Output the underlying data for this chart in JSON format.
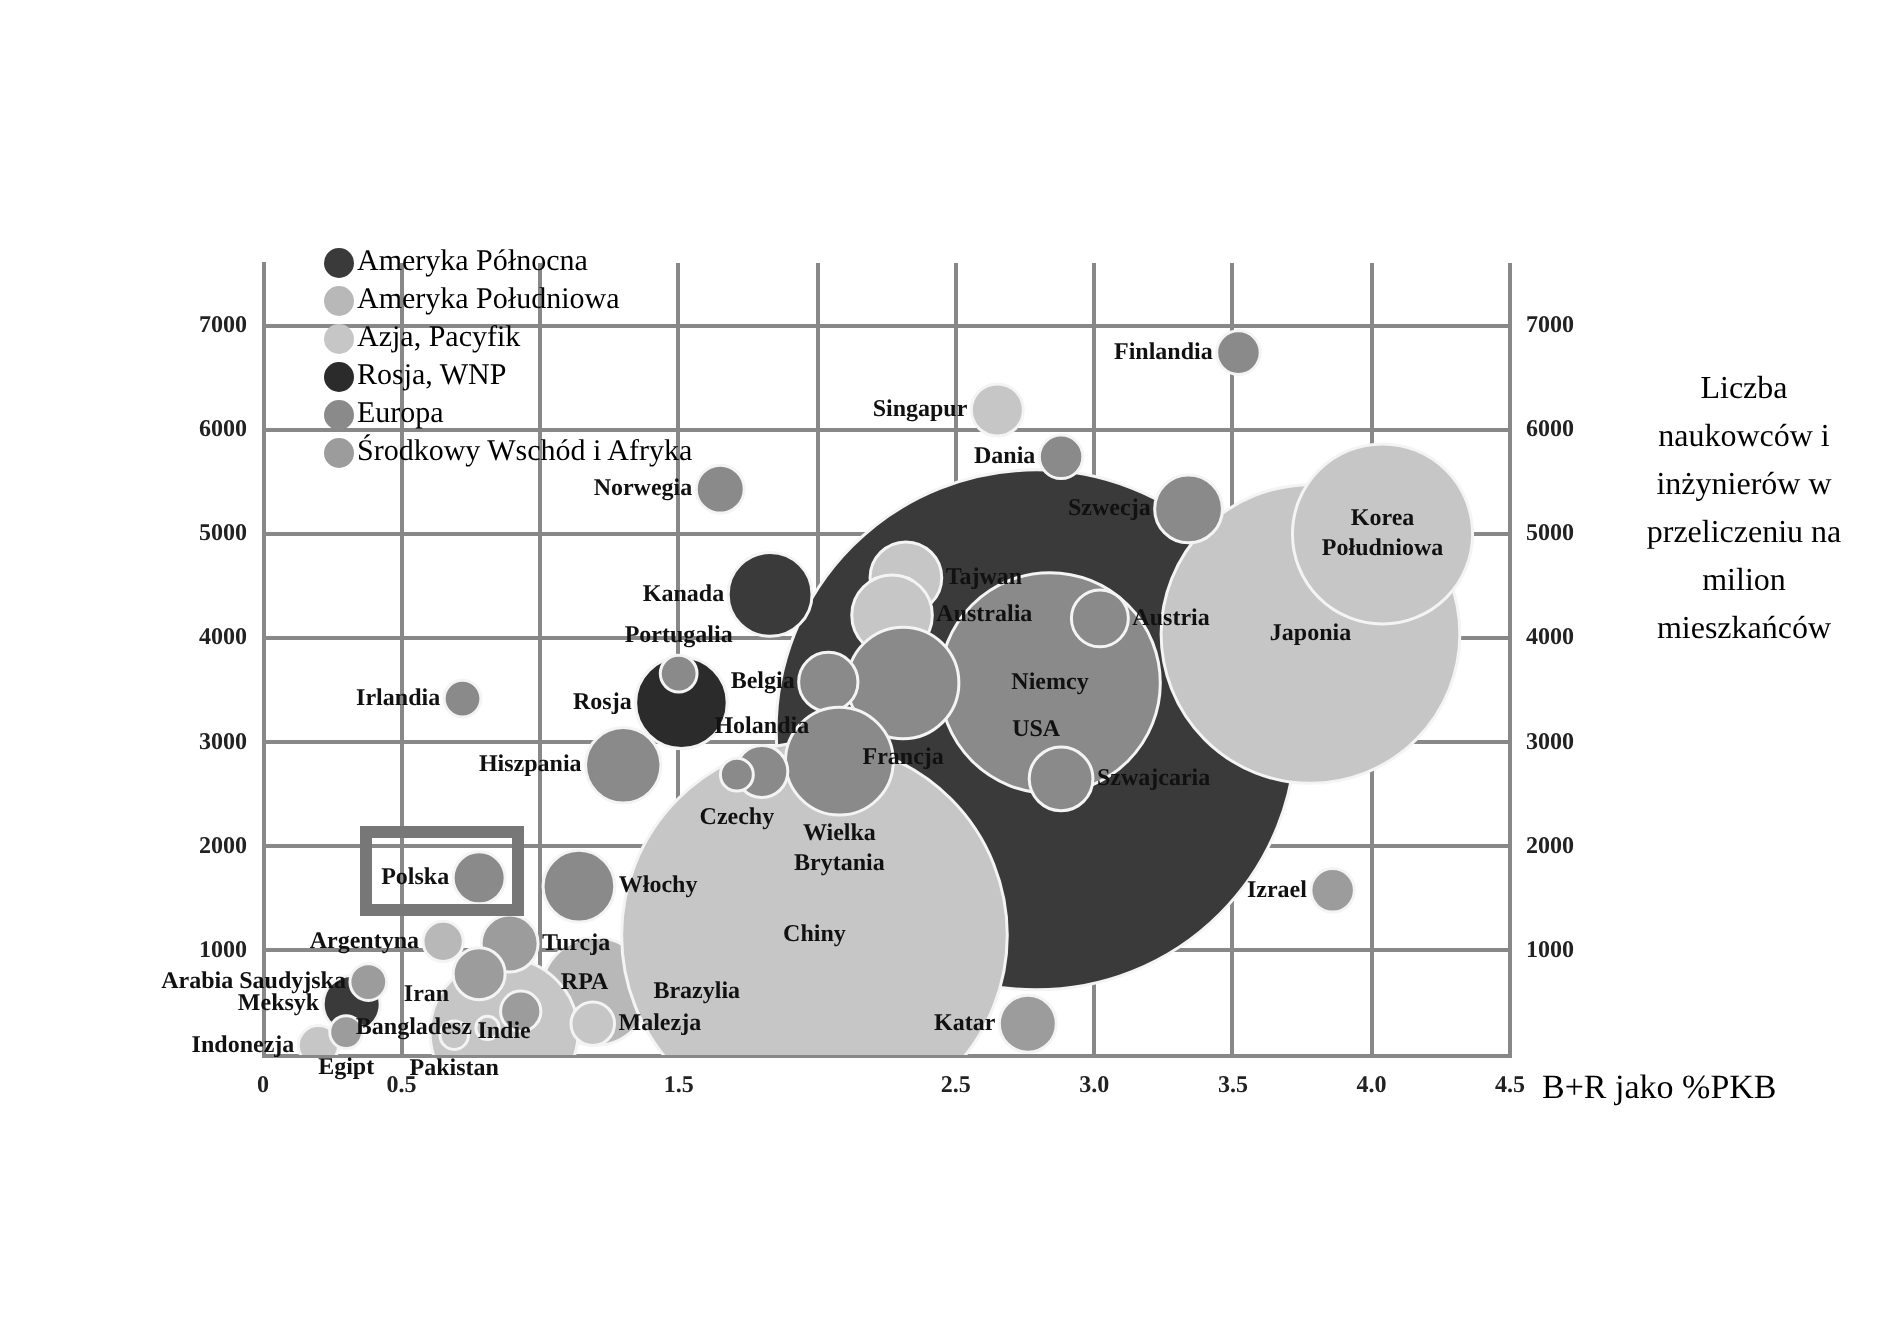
{
  "chart_data": {
    "type": "bubble",
    "xlabel": "B+R jako %PKB",
    "y2label": "Liczba naukowców i inżynierów w przeliczeniu na milion mieszkańców",
    "xlim": [
      0,
      4.5
    ],
    "xticks": [
      0,
      0.5,
      {
        "value": 1,
        "label": null
      },
      1.5,
      {
        "value": 2,
        "label": null
      },
      2.5,
      {
        "value": 3,
        "label": "3.0"
      },
      3.5,
      {
        "value": 4,
        "label": "4.0"
      },
      4.5
    ],
    "ylim": [
      0,
      7600
    ],
    "yticks": [
      1000,
      2000,
      3000,
      4000,
      5000,
      6000,
      7000
    ],
    "y2lim": [
      0,
      7600
    ],
    "y2ticks": [
      1000,
      2000,
      3000,
      4000,
      5000,
      6000,
      7000
    ],
    "grid": true,
    "legend": "top left",
    "series": [
      {
        "name": "Ameryka Północna",
        "color": "#3a3a3a",
        "x": [
          2.79,
          1.83,
          0.32
        ],
        "values": [
          3120,
          4420,
          490
        ],
        "sizes": [
          1,
          0.026,
          0.012
        ]
      },
      {
        "name": "Ameryka Południowa",
        "color": "#b8b8b8",
        "x": [
          1.2,
          0.65
        ],
        "values": [
          610,
          1090
        ],
        "sizes": [
          0.043,
          0.006
        ]
      },
      {
        "name": "Azja, Pacyfik",
        "color": "#c6c6c6",
        "x": [
          1.99,
          3.78,
          4.04,
          2.32,
          2.27,
          2.65,
          0.87,
          1.19,
          0.81,
          0.69,
          0.2
        ],
        "values": [
          1150,
          4040,
          5000,
          4580,
          4220,
          6190,
          220,
          300,
          260,
          190,
          90
        ],
        "sizes": [
          0.55,
          0.33,
          0.12,
          0.019,
          0.024,
          0.01,
          0.081,
          0.007,
          0.002,
          0.003,
          0.006
        ]
      },
      {
        "name": "Rosja, WNP",
        "color": "#2b2b2b",
        "x": [
          1.51
        ],
        "values": [
          3380
        ],
        "sizes": [
          0.031
        ]
      },
      {
        "name": "Europa",
        "color": "#8a8a8a",
        "x": [
          2.84,
          2.31,
          2.04,
          3.02,
          2.88,
          2.08,
          1.8,
          1.71,
          1.3,
          1.5,
          1.65,
          2.88,
          3.34,
          3.52,
          0.72,
          0.78,
          1.14
        ],
        "values": [
          3570,
          3570,
          3580,
          4190,
          2650,
          2820,
          2720,
          2690,
          2780,
          3660,
          5430,
          5740,
          5240,
          6740,
          3420,
          1700,
          1620
        ],
        "sizes": [
          0.18,
          0.046,
          0.013,
          0.012,
          0.015,
          0.043,
          0.01,
          0.004,
          0.021,
          0.005,
          0.0085,
          0.007,
          0.017,
          0.007,
          0.005,
          0.01,
          0.019
        ]
      },
      {
        "name": "Środkowy Wschód i Afryka",
        "color": "#9c9c9c",
        "x": [
          3.86,
          2.76,
          0.89,
          0.78,
          0.93,
          0.38,
          0.3
        ],
        "values": [
          1580,
          300,
          1070,
          780,
          420,
          700,
          220
        ],
        "sizes": [
          0.007,
          0.012,
          0.012,
          0.01,
          0.006,
          0.005,
          0.004
        ]
      }
    ],
    "annotations": [
      {
        "text": "USA",
        "x": 2.79,
        "y": 3120
      },
      {
        "text": "Kanada",
        "x": 1.83,
        "y": 4420
      },
      {
        "text": "Meksyk",
        "x": 0.32,
        "y": 490
      },
      {
        "text": "Brazylia",
        "x": 1.2,
        "y": 610
      },
      {
        "text": "Argentyna",
        "x": 0.65,
        "y": 1090
      },
      {
        "text": "Chiny",
        "x": 1.99,
        "y": 1150
      },
      {
        "text": "Japonia",
        "x": 3.78,
        "y": 4040
      },
      {
        "text": "Korea\nPołudniowa",
        "x": 4.04,
        "y": 5000
      },
      {
        "text": "Tajwan",
        "x": 2.32,
        "y": 4580
      },
      {
        "text": "Australia",
        "x": 2.27,
        "y": 4220
      },
      {
        "text": "Singapur",
        "x": 2.65,
        "y": 6190
      },
      {
        "text": "Indie",
        "x": 0.87,
        "y": 220
      },
      {
        "text": "Malezja",
        "x": 1.19,
        "y": 300
      },
      {
        "text": "Bangladesz",
        "x": 0.81,
        "y": 260
      },
      {
        "text": "Pakistan",
        "x": 0.69,
        "y": 190
      },
      {
        "text": "Indonezja",
        "x": 0.2,
        "y": 90
      },
      {
        "text": "Rosja",
        "x": 1.51,
        "y": 3380
      },
      {
        "text": "Niemcy",
        "x": 2.84,
        "y": 3570
      },
      {
        "text": "Francja",
        "x": 2.31,
        "y": 3570
      },
      {
        "text": "Belgia",
        "x": 2.04,
        "y": 3580
      },
      {
        "text": "Austria",
        "x": 3.02,
        "y": 4190
      },
      {
        "text": "Szwajcaria",
        "x": 2.88,
        "y": 2650
      },
      {
        "text": "Wielka\nBrytania",
        "x": 2.08,
        "y": 2820
      },
      {
        "text": "Holandia",
        "x": 1.8,
        "y": 2720
      },
      {
        "text": "Czechy",
        "x": 1.71,
        "y": 2690
      },
      {
        "text": "Hiszpania",
        "x": 1.3,
        "y": 2780
      },
      {
        "text": "Portugalia",
        "x": 1.5,
        "y": 3660
      },
      {
        "text": "Norwegia",
        "x": 1.65,
        "y": 5430
      },
      {
        "text": "Dania",
        "x": 2.88,
        "y": 5740
      },
      {
        "text": "Szwecja",
        "x": 3.34,
        "y": 5240
      },
      {
        "text": "Finlandia",
        "x": 3.52,
        "y": 6740
      },
      {
        "text": "Irlandia",
        "x": 0.72,
        "y": 3420
      },
      {
        "text": "Polska",
        "x": 0.78,
        "y": 1700
      },
      {
        "text": "Włochy",
        "x": 1.14,
        "y": 1620
      },
      {
        "text": "Izrael",
        "x": 3.86,
        "y": 1580
      },
      {
        "text": "Katar",
        "x": 2.76,
        "y": 300
      },
      {
        "text": "Turcja",
        "x": 0.89,
        "y": 1070
      },
      {
        "text": "Iran",
        "x": 0.78,
        "y": 780
      },
      {
        "text": "RPA",
        "x": 0.93,
        "y": 420
      },
      {
        "text": "Arabia Saudyjska",
        "x": 0.38,
        "y": 700
      },
      {
        "text": "Egipt",
        "x": 0.3,
        "y": 220
      }
    ]
  }
}
